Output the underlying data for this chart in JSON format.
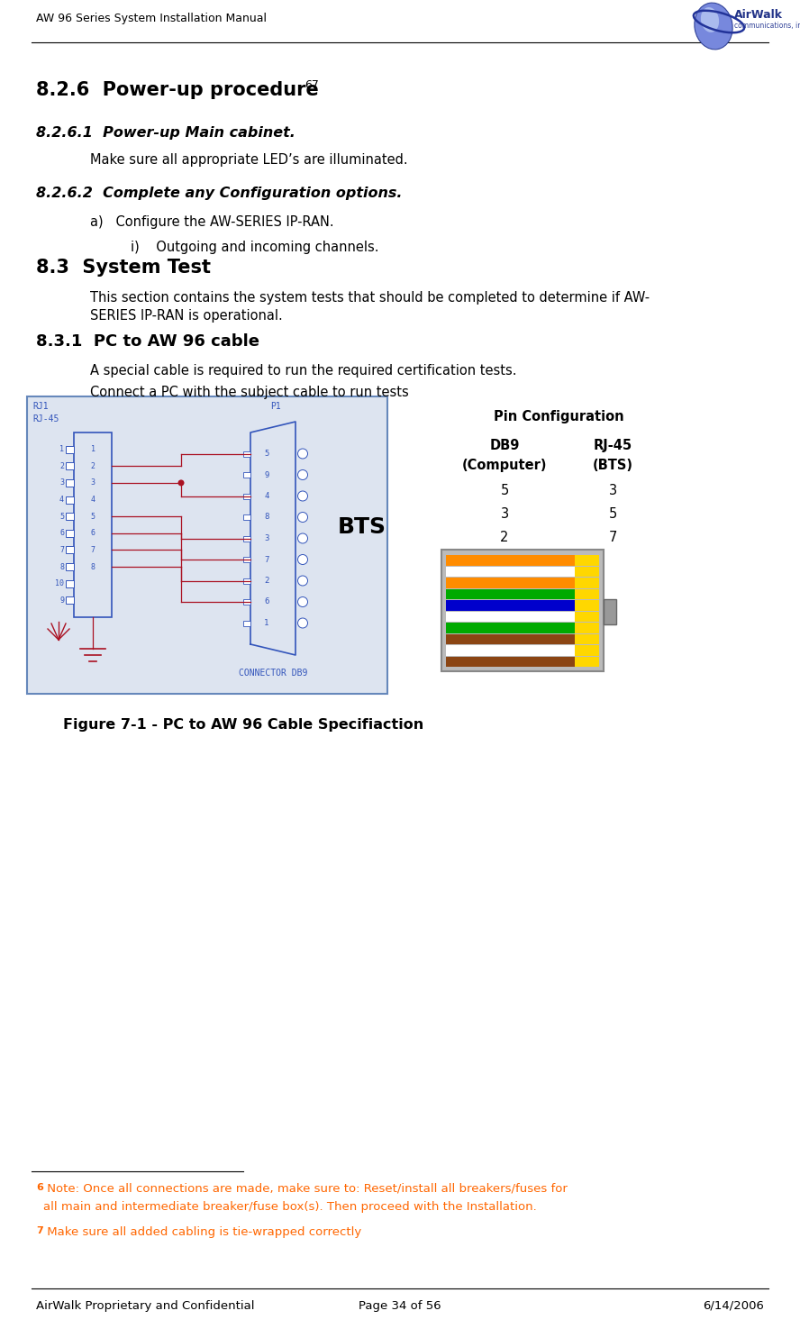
{
  "page_title": "AW 96 Series System Installation Manual",
  "footer_left": "AirWalk Proprietary and Confidential",
  "footer_center": "Page 34 of 56",
  "footer_right": "6/14/2006",
  "section_826_title": "8.2.6  Power-up procedure",
  "section_826_super": "67",
  "section_8261_title": "8.2.6.1  Power-up Main cabinet.",
  "section_8261_body": "Make sure all appropriate LED’s are illuminated.",
  "section_8262_title": "8.2.6.2  Complete any Configuration options.",
  "section_8262_a": "a)   Configure the AW-SERIES IP-RAN.",
  "section_8262_i": "i)    Outgoing and incoming channels.",
  "section_83_title": "8.3  System Test",
  "section_83_body1": "This section contains the system tests that should be completed to determine if AW-",
  "section_83_body2": "SERIES IP-RAN is operational.",
  "section_831_title": "8.3.1  PC to AW 96 cable",
  "section_831_body1": "A special cable is required to run the required certification tests.",
  "section_831_body2": "Connect a PC with the subject cable to run tests",
  "figure_caption": "Figure 7-1 - PC to AW 96 Cable Specifiaction",
  "pin_config_title": "Pin Configuration",
  "pin_config_col1_header": "DB9",
  "pin_config_col1_sub": "(Computer)",
  "pin_config_col2_header": "RJ-45",
  "pin_config_col2_sub": "(BTS)",
  "pin_config_rows": [
    [
      "5",
      "3"
    ],
    [
      "3",
      "5"
    ],
    [
      "2",
      "7"
    ]
  ],
  "footnote6_super": "6",
  "footnote6_text": " Note: Once all connections are made, make sure to: Reset/install all breakers/fuses for",
  "footnote6_text2": "all main and intermediate breaker/fuse box(s). Then proceed with the Installation.",
  "footnote7_super": "7",
  "footnote7_text": " Make sure all added cabling is tie-wrapped correctly",
  "footnote_color": "#FF6600",
  "bg_color": "#ffffff",
  "diagram_bg": "#dde4f0",
  "diagram_border": "#6688bb",
  "wire_color": "#aa1122",
  "blue_label": "#3355bb"
}
